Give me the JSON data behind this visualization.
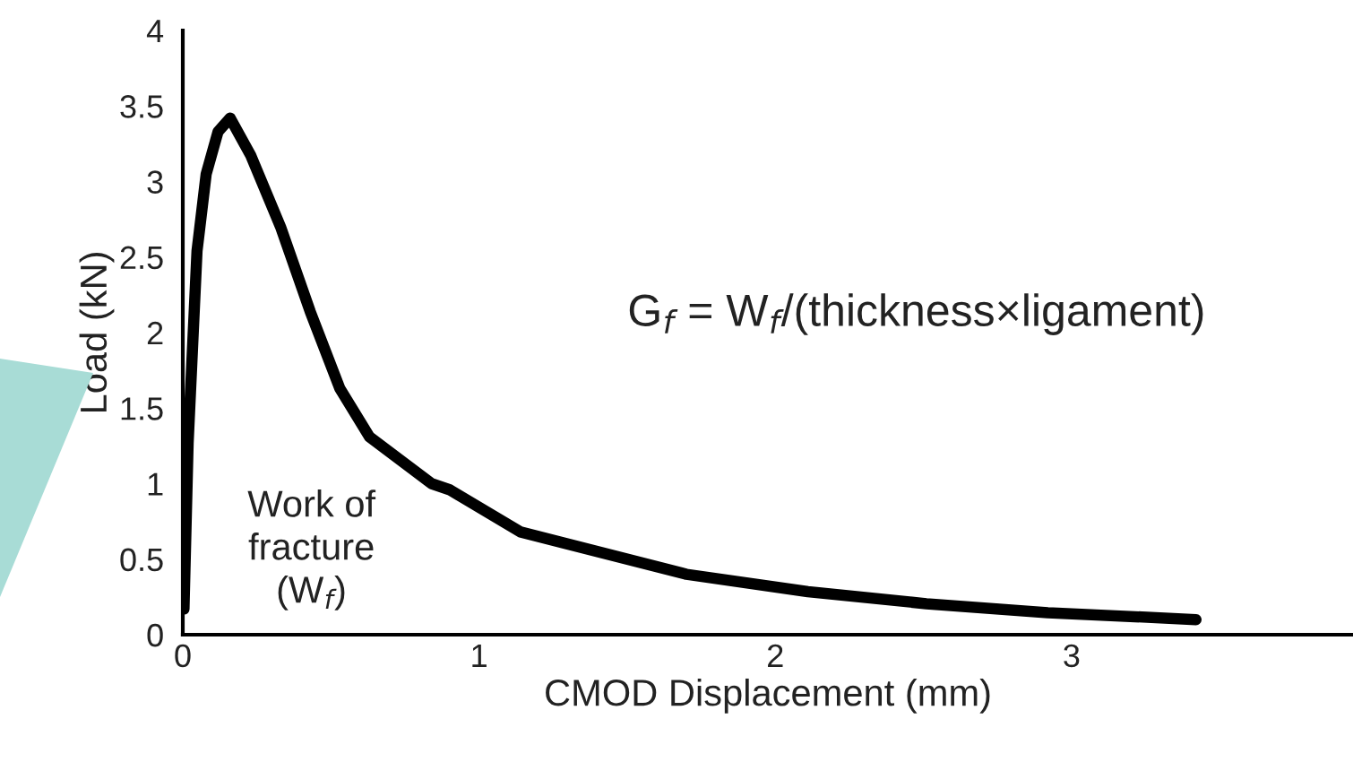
{
  "chart_data": {
    "type": "line",
    "xlabel": "CMOD Displacement (mm)",
    "ylabel": "Load (kN)",
    "series": [
      {
        "color": "#000000",
        "x": [
          0.004,
          0.018,
          0.048,
          0.079,
          0.119,
          0.16,
          0.23,
          0.33,
          0.43,
          0.53,
          0.63,
          0.84,
          0.9,
          1.14,
          1.3,
          1.7,
          2.11,
          2.51,
          2.92,
          3.42
        ],
        "values": [
          0.17,
          1.27,
          2.54,
          3.05,
          3.33,
          3.42,
          3.17,
          2.7,
          2.14,
          1.63,
          1.31,
          1.0,
          0.96,
          0.68,
          0.6,
          0.4,
          0.285,
          0.205,
          0.146,
          0.1
        ]
      }
    ],
    "xlim": [
      0,
      3.95
    ],
    "xticks": [
      0,
      1,
      2,
      3
    ],
    "ylim": [
      0,
      4
    ],
    "yticks": [
      0,
      {
        "value": 0.5,
        "label": "0.5"
      },
      1,
      {
        "value": 1.5,
        "label": "1.5"
      },
      2,
      {
        "value": 2.5,
        "label": "2.5"
      },
      3,
      {
        "value": 3.5,
        "label": "3.5"
      },
      4
    ],
    "grid": false,
    "legend": false,
    "marker": "none",
    "line_style": "solid",
    "annotations": [
      "G$_{f}$ = W$_{f}$/(thickness×ligament)",
      "Work of\nfracture\n(W$_{f}$)"
    ]
  }
}
